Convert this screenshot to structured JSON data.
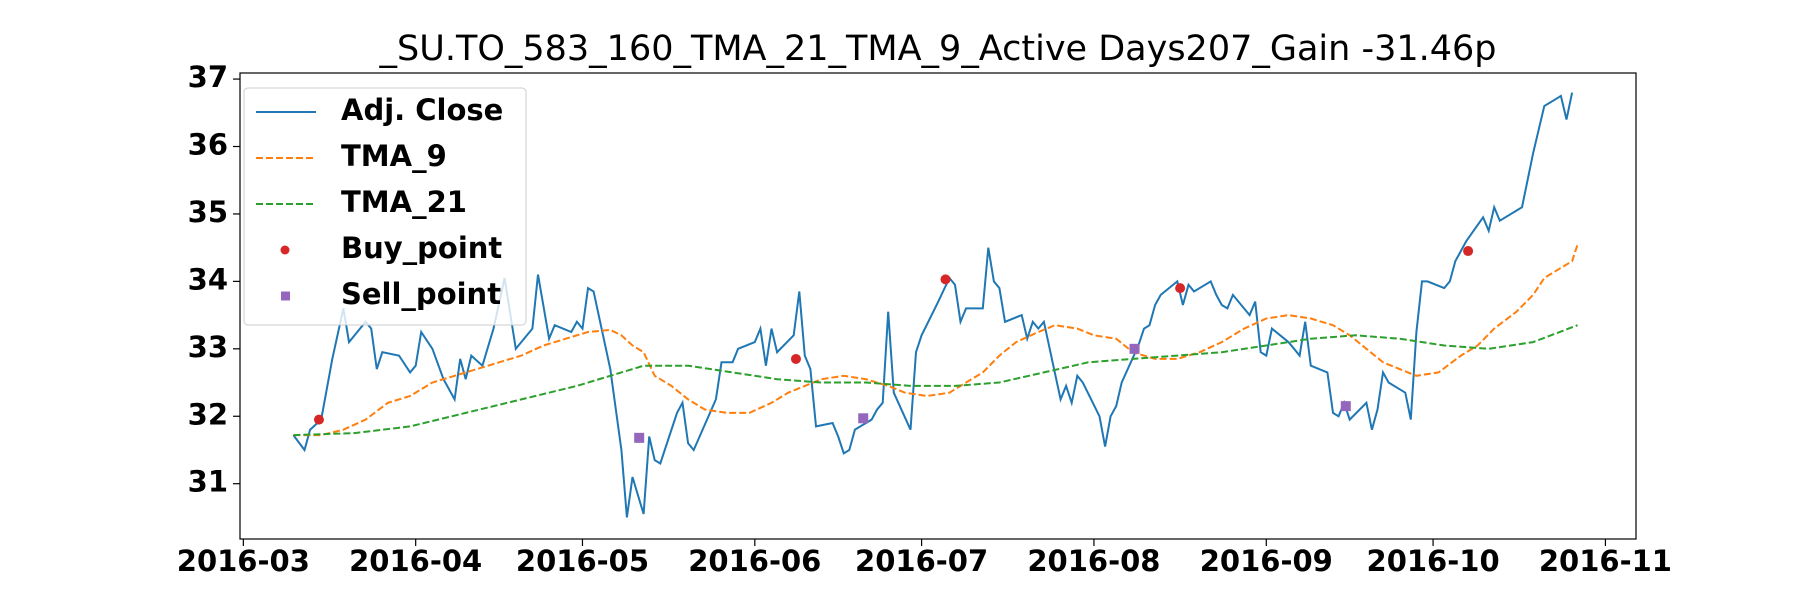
{
  "chart_data": {
    "type": "line",
    "title": "_SU.TO_583_160_TMA_21_TMA_9_Active Days207_Gain -31.46p",
    "xlim": [
      -0.6,
      250.5
    ],
    "xticks": [
      {
        "value": 0,
        "label": "2016-03"
      },
      {
        "value": 31,
        "label": "2016-04"
      },
      {
        "value": 61,
        "label": "2016-05"
      },
      {
        "value": 92,
        "label": "2016-06"
      },
      {
        "value": 122,
        "label": "2016-07"
      },
      {
        "value": 153,
        "label": "2016-08"
      },
      {
        "value": 184,
        "label": "2016-09"
      },
      {
        "value": 214,
        "label": "2016-10"
      },
      {
        "value": 245,
        "label": "2016-11"
      }
    ],
    "ylim": [
      30.18,
      37.09
    ],
    "yticks": [
      31,
      32,
      33,
      34,
      35,
      36,
      37
    ],
    "legend": "upper left",
    "series": [
      {
        "name": "Adj. Close",
        "color": "#1f77b4",
        "style": "solid",
        "x": [
          9,
          11,
          12,
          14,
          16,
          18,
          19,
          22,
          23,
          24,
          25,
          28,
          30,
          31,
          32,
          34,
          36,
          38,
          39,
          40,
          41,
          43,
          45,
          47,
          49,
          52,
          53,
          55,
          56,
          59,
          60,
          61,
          62,
          63,
          66,
          68,
          69,
          70,
          72,
          73,
          74,
          75,
          78,
          79,
          80,
          81,
          85,
          86,
          88,
          89,
          92,
          93,
          94,
          95,
          96,
          99,
          100,
          101,
          102,
          103,
          106,
          107,
          108,
          109,
          110,
          113,
          114,
          115,
          116,
          117,
          120,
          121,
          122,
          125,
          127,
          128,
          129,
          130,
          133,
          134,
          135,
          136,
          137,
          140,
          141,
          142,
          143,
          144,
          147,
          148,
          149,
          150,
          151,
          154,
          155,
          156,
          157,
          158,
          161,
          162,
          163,
          164,
          165,
          168,
          169,
          170,
          171,
          174,
          175,
          176,
          177,
          178,
          181,
          182,
          183,
          184,
          185,
          188,
          189,
          190,
          191,
          192,
          195,
          196,
          197,
          198,
          199,
          202,
          203,
          204,
          205,
          206,
          209,
          210,
          211,
          212,
          213,
          216,
          217,
          218,
          219,
          220,
          223,
          224,
          225,
          226,
          230,
          232,
          234,
          236,
          237,
          238,
          239
        ],
        "values": [
          31.72,
          31.5,
          31.8,
          31.95,
          32.85,
          33.6,
          33.1,
          33.4,
          33.3,
          32.7,
          32.95,
          32.9,
          32.65,
          32.75,
          33.25,
          33.0,
          32.55,
          32.25,
          32.85,
          32.55,
          32.9,
          32.75,
          33.3,
          34.05,
          33.0,
          33.3,
          34.1,
          33.15,
          33.35,
          33.25,
          33.4,
          33.3,
          33.9,
          33.85,
          32.7,
          31.5,
          30.5,
          31.1,
          30.55,
          31.7,
          31.35,
          31.3,
          32.05,
          32.2,
          31.6,
          31.5,
          32.25,
          32.8,
          32.8,
          33.0,
          33.1,
          33.3,
          32.75,
          33.3,
          32.95,
          33.2,
          33.85,
          32.9,
          32.7,
          31.85,
          31.9,
          31.7,
          31.45,
          31.5,
          31.8,
          31.95,
          32.1,
          32.2,
          33.55,
          32.35,
          31.8,
          32.95,
          33.2,
          33.7,
          34.05,
          33.95,
          33.4,
          33.6,
          33.6,
          34.5,
          34.0,
          33.9,
          33.4,
          33.5,
          33.15,
          33.4,
          33.3,
          33.4,
          32.25,
          32.45,
          32.2,
          32.6,
          32.5,
          32.0,
          31.55,
          32.0,
          32.15,
          32.5,
          33.05,
          33.3,
          33.35,
          33.65,
          33.8,
          34.0,
          33.65,
          33.95,
          33.85,
          34.0,
          33.8,
          33.65,
          33.6,
          33.8,
          33.5,
          33.7,
          32.95,
          32.9,
          33.3,
          33.1,
          33.0,
          32.9,
          33.4,
          32.75,
          32.65,
          32.05,
          32.0,
          32.2,
          31.95,
          32.2,
          31.8,
          32.1,
          32.65,
          32.5,
          32.35,
          31.95,
          33.25,
          34.0,
          34.0,
          33.9,
          34.0,
          34.3,
          34.45,
          34.6,
          34.95,
          34.75,
          35.1,
          34.9,
          35.1,
          35.9,
          36.6,
          36.7,
          36.75,
          36.4,
          36.8
        ]
      },
      {
        "name": "TMA_9",
        "color": "#ff7f0e",
        "style": "dashed",
        "x": [
          9,
          14,
          18,
          22,
          26,
          30,
          34,
          38,
          42,
          46,
          50,
          54,
          58,
          62,
          66,
          68,
          70,
          72,
          74,
          77,
          80,
          83,
          87,
          91,
          95,
          98,
          101,
          104,
          108,
          112,
          116,
          119,
          123,
          127,
          130,
          133,
          136,
          139,
          143,
          146,
          150,
          153,
          157,
          160,
          164,
          168,
          172,
          176,
          180,
          184,
          188,
          192,
          196,
          199,
          202,
          205,
          208,
          211,
          215,
          219,
          222,
          225,
          229,
          232,
          234,
          237,
          239,
          240
        ],
        "values": [
          31.72,
          31.72,
          31.8,
          31.95,
          32.2,
          32.3,
          32.5,
          32.6,
          32.7,
          32.8,
          32.9,
          33.05,
          33.15,
          33.25,
          33.28,
          33.2,
          33.05,
          32.95,
          32.6,
          32.45,
          32.25,
          32.1,
          32.05,
          32.05,
          32.2,
          32.35,
          32.45,
          32.55,
          32.6,
          32.55,
          32.45,
          32.35,
          32.3,
          32.35,
          32.5,
          32.65,
          32.9,
          33.1,
          33.25,
          33.35,
          33.3,
          33.2,
          33.15,
          32.95,
          32.85,
          32.85,
          32.95,
          33.1,
          33.3,
          33.45,
          33.5,
          33.45,
          33.35,
          33.2,
          33.0,
          32.8,
          32.7,
          32.6,
          32.65,
          32.9,
          33.05,
          33.3,
          33.55,
          33.8,
          34.05,
          34.2,
          34.3,
          34.55
        ]
      },
      {
        "name": "TMA_21",
        "color": "#2ca02c",
        "style": "dashed",
        "x": [
          9,
          20,
          30,
          40,
          50,
          60,
          66,
          72,
          80,
          88,
          96,
          104,
          112,
          120,
          128,
          136,
          144,
          152,
          160,
          168,
          176,
          184,
          192,
          200,
          208,
          216,
          224,
          232,
          240
        ],
        "values": [
          31.72,
          31.75,
          31.85,
          32.05,
          32.25,
          32.45,
          32.6,
          32.75,
          32.75,
          32.65,
          32.55,
          32.5,
          32.5,
          32.45,
          32.45,
          32.5,
          32.65,
          32.8,
          32.85,
          32.9,
          32.95,
          33.05,
          33.15,
          33.2,
          33.15,
          33.05,
          33.0,
          33.1,
          33.35
        ]
      },
      {
        "name": "Buy_point",
        "color": "#d62728",
        "marker": "circle",
        "x": [
          13.6,
          99.4,
          126.3,
          168.5,
          220.3
        ],
        "values": [
          31.95,
          32.85,
          34.03,
          33.9,
          34.45
        ]
      },
      {
        "name": "Sell_point",
        "color": "#9467bd",
        "marker": "square",
        "x": [
          71.2,
          111.5,
          160.3,
          198.3
        ],
        "values": [
          31.68,
          31.97,
          33.0,
          32.15
        ]
      }
    ]
  }
}
